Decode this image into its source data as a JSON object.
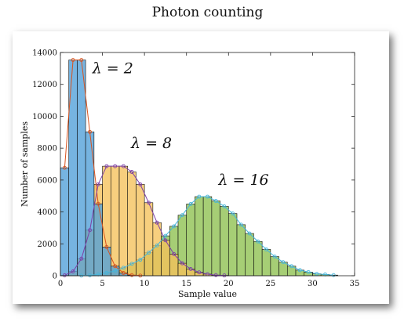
{
  "page": {
    "title": "Photon counting"
  },
  "chart_data": {
    "type": "bar",
    "title": "",
    "xlabel": "Sample value",
    "ylabel": "Number of samples",
    "xlim": [
      0,
      35
    ],
    "ylim": [
      0,
      14000
    ],
    "xticks": [
      0,
      5,
      10,
      15,
      20,
      25,
      30,
      35
    ],
    "yticks": [
      0,
      2000,
      4000,
      6000,
      8000,
      10000,
      12000,
      14000
    ],
    "grid": false,
    "series": [
      {
        "name": "λ = 2",
        "color": "#4f9fd9",
        "line_color": "#d9531e",
        "bin_start": [
          0,
          1,
          2,
          3,
          4,
          5,
          6,
          7,
          8,
          9
        ],
        "values": [
          6770,
          13530,
          13530,
          9020,
          4510,
          1800,
          600,
          170,
          40,
          10
        ]
      },
      {
        "name": "λ = 8",
        "color": "#f5c25a",
        "line_color": "#7e3fa8",
        "bin_start": [
          0,
          1,
          2,
          3,
          4,
          5,
          6,
          7,
          8,
          9,
          10,
          11,
          12,
          13,
          14,
          15,
          16,
          17,
          18,
          19
        ],
        "values": [
          30,
          270,
          1070,
          2860,
          5730,
          6870,
          6870,
          6870,
          6510,
          5730,
          4580,
          3330,
          2220,
          1360,
          780,
          420,
          210,
          100,
          40,
          20
        ]
      },
      {
        "name": "λ = 16",
        "color": "#8dc04e",
        "line_color": "#47b5d9",
        "bin_start": [
          2,
          3,
          4,
          5,
          6,
          7,
          8,
          9,
          10,
          11,
          12,
          13,
          14,
          15,
          16,
          17,
          18,
          19,
          20,
          21,
          22,
          23,
          24,
          25,
          26,
          27,
          28,
          29,
          30,
          31,
          32
        ],
        "values": [
          10,
          30,
          80,
          180,
          300,
          500,
          750,
          1000,
          1450,
          1900,
          2500,
          3100,
          3800,
          4500,
          4960,
          4960,
          4690,
          4350,
          3900,
          3200,
          2650,
          2150,
          1650,
          1200,
          850,
          600,
          350,
          230,
          120,
          80,
          40
        ]
      }
    ],
    "annotations": [
      {
        "text": "λ = 2",
        "x": 3.8,
        "y": 12700
      },
      {
        "text": "λ = 8",
        "x": 8.4,
        "y": 8000
      },
      {
        "text": "λ = 16",
        "x": 18.8,
        "y": 5700
      }
    ]
  }
}
